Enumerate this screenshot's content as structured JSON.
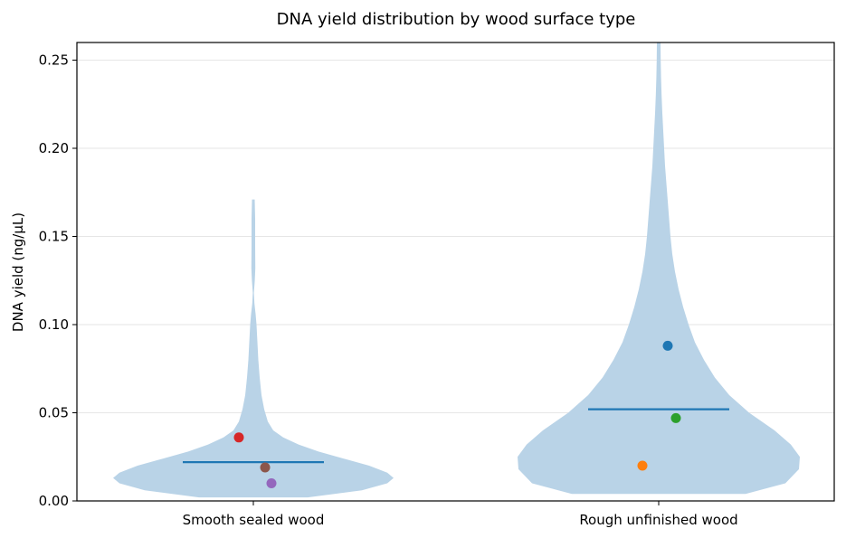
{
  "chart_data": {
    "type": "violin",
    "title": "DNA yield distribution by wood surface type",
    "xlabel": "",
    "ylabel": "DNA yield (ng/µL)",
    "ylim": [
      0,
      0.26
    ],
    "yticks": [
      "0.00",
      "0.05",
      "0.10",
      "0.15",
      "0.20",
      "0.25"
    ],
    "ytick_values": [
      0,
      0.05,
      0.1,
      0.15,
      0.2,
      0.25
    ],
    "grid": "horizontal",
    "categories": [
      "Smooth sealed wood",
      "Rough unfinished wood"
    ],
    "violins": [
      {
        "category": "Smooth sealed wood",
        "median": 0.022,
        "range": [
          0.002,
          0.171
        ],
        "color": "#b9d3e7",
        "points": [
          {
            "y": 0.036,
            "color": "#d62728"
          },
          {
            "y": 0.019,
            "color": "#8c564b"
          },
          {
            "y": 0.01,
            "color": "#9467bd"
          }
        ]
      },
      {
        "category": "Rough unfinished wood",
        "median": 0.052,
        "range": [
          0.004,
          0.26
        ],
        "color": "#b9d3e7",
        "points": [
          {
            "y": 0.088,
            "color": "#1f77b4"
          },
          {
            "y": 0.047,
            "color": "#2ca02c"
          },
          {
            "y": 0.02,
            "color": "#ff7f0e"
          }
        ]
      }
    ],
    "median_color": "#1f77b4"
  }
}
